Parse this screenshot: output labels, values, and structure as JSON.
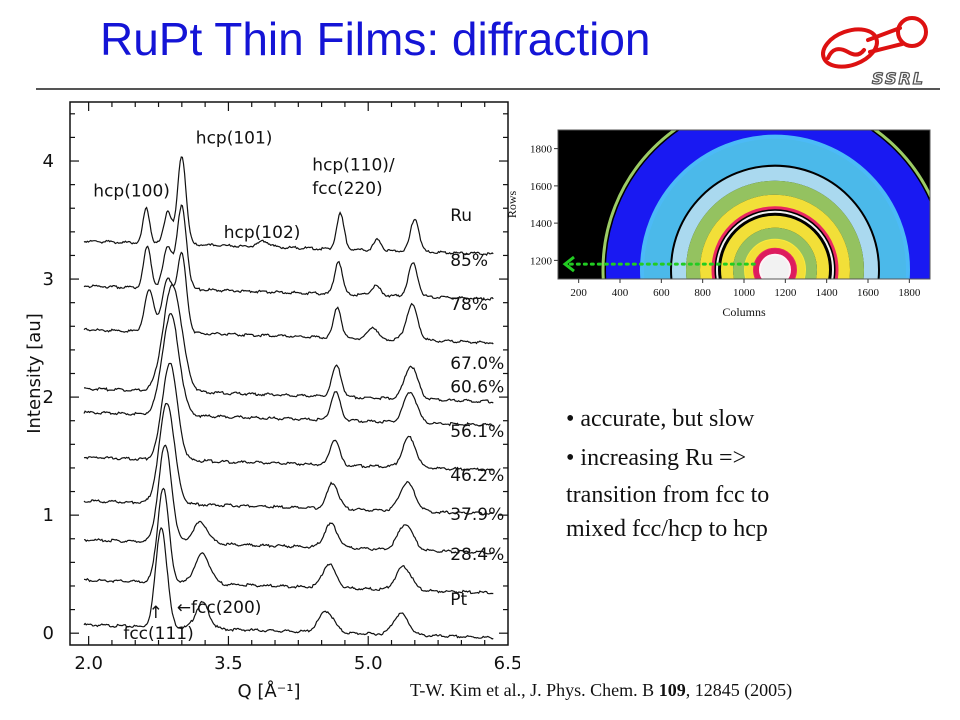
{
  "slide": {
    "title": "RuPt Thin Films: diffraction",
    "logo_text": "SSRL",
    "bullets": [
      "• accurate, but slow",
      "• increasing Ru =>"
    ],
    "bullet_continuation": [
      "transition from fcc to",
      "mixed fcc/hcp to hcp"
    ],
    "citation": {
      "prefix": "T-W. Kim et al., J. Phys. Chem. B ",
      "volume": "109",
      "suffix": ", 12845 (2005)"
    }
  },
  "chart_data": [
    {
      "type": "line",
      "xlabel": "Q [Å⁻¹]",
      "ylabel": "Intensity [au]",
      "xlim": [
        1.8,
        6.5
      ],
      "ylim": [
        -0.1,
        4.5
      ],
      "xticks": [
        2.0,
        3.5,
        5.0,
        6.5
      ],
      "yticks": [
        0,
        1,
        2,
        3,
        4
      ],
      "grid": false,
      "series": [
        {
          "name": "Pt",
          "offset": 0.0,
          "peaks": [
            [
              2.78,
              0.85,
              0.06
            ],
            [
              3.22,
              0.22,
              0.07
            ],
            [
              4.55,
              0.18,
              0.08
            ],
            [
              5.35,
              0.18,
              0.08
            ]
          ]
        },
        {
          "name": "28.4%",
          "offset": 0.38,
          "peaks": [
            [
              2.8,
              0.8,
              0.06
            ],
            [
              3.22,
              0.25,
              0.08
            ],
            [
              4.58,
              0.2,
              0.07
            ],
            [
              5.38,
              0.2,
              0.08
            ]
          ]
        },
        {
          "name": "37.9%",
          "offset": 0.72,
          "peaks": [
            [
              2.82,
              0.82,
              0.07
            ],
            [
              3.2,
              0.18,
              0.08
            ],
            [
              4.6,
              0.2,
              0.07
            ],
            [
              5.4,
              0.22,
              0.08
            ]
          ]
        },
        {
          "name": "46.2%",
          "offset": 1.05,
          "peaks": [
            [
              2.84,
              0.85,
              0.08
            ],
            [
              4.62,
              0.22,
              0.06
            ],
            [
              5.42,
              0.24,
              0.08
            ]
          ]
        },
        {
          "name": "56.1%",
          "offset": 1.42,
          "peaks": [
            [
              2.87,
              0.82,
              0.08
            ],
            [
              4.64,
              0.22,
              0.05
            ],
            [
              5.44,
              0.26,
              0.07
            ]
          ]
        },
        {
          "name": "60.6%",
          "offset": 1.8,
          "peaks": [
            [
              2.88,
              0.85,
              0.09
            ],
            [
              4.65,
              0.24,
              0.05
            ],
            [
              5.45,
              0.26,
              0.07
            ]
          ]
        },
        {
          "name": "67.0%",
          "offset": 2.0,
          "peaks": [
            [
              2.9,
              0.9,
              0.1
            ],
            [
              4.66,
              0.26,
              0.05
            ],
            [
              5.46,
              0.28,
              0.07
            ]
          ]
        },
        {
          "name": "78%",
          "offset": 2.5,
          "peaks": [
            [
              2.65,
              0.35,
              0.05
            ],
            [
              2.85,
              0.45,
              0.06
            ],
            [
              3.0,
              0.65,
              0.05
            ],
            [
              4.67,
              0.26,
              0.04
            ],
            [
              5.05,
              0.1,
              0.05
            ],
            [
              5.47,
              0.3,
              0.06
            ]
          ]
        },
        {
          "name": "85%",
          "offset": 2.87,
          "peaks": [
            [
              2.63,
              0.35,
              0.04
            ],
            [
              2.85,
              0.35,
              0.05
            ],
            [
              3.0,
              0.7,
              0.05
            ],
            [
              4.68,
              0.28,
              0.04
            ],
            [
              5.08,
              0.08,
              0.05
            ],
            [
              5.48,
              0.28,
              0.05
            ]
          ]
        },
        {
          "name": "Ru",
          "offset": 3.25,
          "peaks": [
            [
              2.62,
              0.3,
              0.035
            ],
            [
              2.85,
              0.28,
              0.04
            ],
            [
              3.0,
              0.75,
              0.045
            ],
            [
              3.88,
              0.05,
              0.06
            ],
            [
              4.7,
              0.3,
              0.04
            ],
            [
              5.1,
              0.09,
              0.04
            ],
            [
              5.5,
              0.28,
              0.045
            ]
          ]
        }
      ],
      "annotations": [
        "hcp(100)",
        "hcp(101)",
        "hcp(102)",
        "hcp(110)/",
        "fcc(220)",
        "fcc(111)",
        "←fcc(200)",
        "↑"
      ]
    },
    {
      "type": "heatmap",
      "xlabel": "Columns",
      "ylabel": "Rows",
      "xticks": [
        200,
        400,
        600,
        800,
        1000,
        1200,
        1400,
        1600,
        1800
      ],
      "yticks": [
        1200,
        1400,
        1600,
        1800
      ],
      "xlim": [
        100,
        1900
      ],
      "ylim": [
        1100,
        1900
      ],
      "colormap": [
        "#000000",
        "#1a1aff",
        "#4fc3f7",
        "#9ccc65",
        "#ffeb3b",
        "#e91e63",
        "#ffffff"
      ],
      "arrow_color": "#22cc22"
    }
  ]
}
